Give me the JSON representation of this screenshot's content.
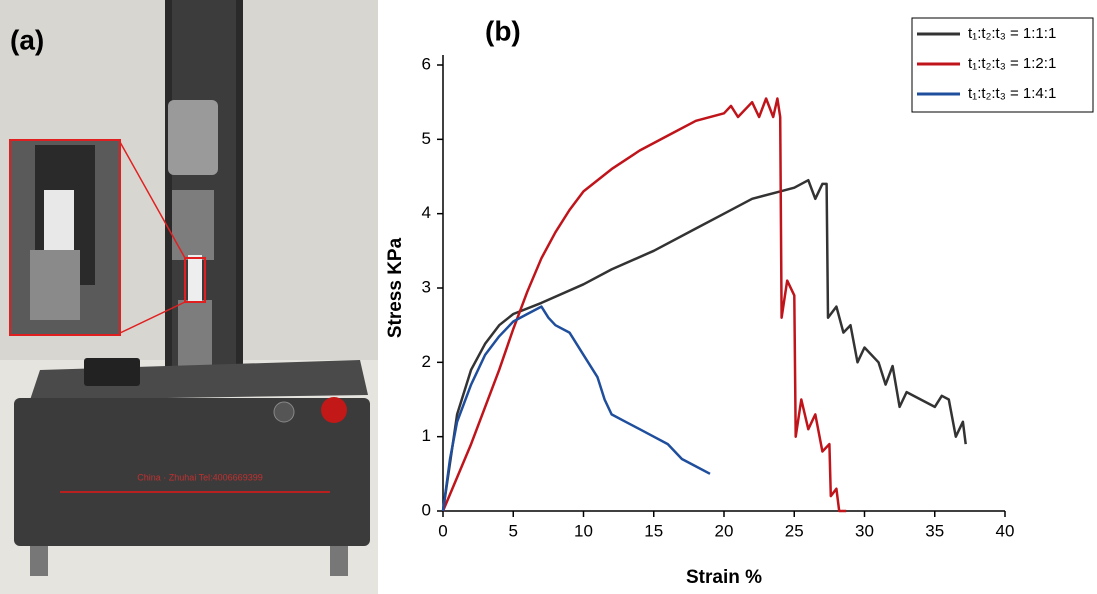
{
  "panel_labels": [
    "(a)",
    "(b)"
  ],
  "photo": {
    "machine_text": "China · Zhuhai Tel:4006669399"
  },
  "chart_data": {
    "type": "line",
    "xlabel": "Strain %",
    "ylabel": "Stress KPa",
    "xlim": [
      0,
      40
    ],
    "xticks": [
      0,
      5,
      10,
      15,
      20,
      25,
      30,
      35,
      40
    ],
    "ylim": [
      0,
      6
    ],
    "yticks": [
      0,
      1,
      2,
      3,
      4,
      5,
      6
    ],
    "legend": "upper right",
    "series": [
      {
        "name": "t₁:t₂:t₃ = 1:1:1",
        "color": "#333333",
        "x": [
          0,
          1,
          2,
          3,
          4,
          5,
          7,
          10,
          12,
          15,
          18,
          20,
          22,
          24,
          25,
          26,
          26.5,
          27,
          27.3,
          27.4,
          28,
          28.5,
          29,
          29.5,
          30,
          31,
          31.5,
          32,
          32.5,
          33,
          34,
          35,
          35.5,
          36,
          36.5,
          37,
          37.2
        ],
        "values": [
          0,
          1.3,
          1.9,
          2.25,
          2.5,
          2.65,
          2.8,
          3.05,
          3.25,
          3.5,
          3.8,
          4.0,
          4.2,
          4.3,
          4.35,
          4.45,
          4.2,
          4.4,
          4.4,
          2.6,
          2.75,
          2.4,
          2.5,
          2.0,
          2.2,
          2.0,
          1.7,
          1.95,
          1.4,
          1.6,
          1.5,
          1.4,
          1.55,
          1.5,
          1.0,
          1.2,
          0.9
        ]
      },
      {
        "name": "t₁:t₂:t₃ = 1:2:1",
        "color": "#c0141b",
        "x": [
          0,
          2,
          4,
          5,
          6,
          7,
          8,
          9,
          10,
          12,
          14,
          16,
          18,
          20,
          20.5,
          21,
          22,
          22.5,
          23,
          23.5,
          23.8,
          24,
          24.1,
          24.5,
          25,
          25.1,
          25.5,
          26,
          26.5,
          27,
          27.5,
          27.6,
          28,
          28.2,
          28.7
        ],
        "values": [
          0,
          0.9,
          1.9,
          2.45,
          2.95,
          3.4,
          3.75,
          4.05,
          4.3,
          4.6,
          4.85,
          5.05,
          5.25,
          5.35,
          5.45,
          5.3,
          5.5,
          5.3,
          5.55,
          5.3,
          5.55,
          5.3,
          2.6,
          3.1,
          2.9,
          1.0,
          1.5,
          1.1,
          1.3,
          0.8,
          0.9,
          0.2,
          0.3,
          0,
          0
        ]
      },
      {
        "name": "t₁:t₂:t₃ = 1:4:1",
        "color": "#1f4e9c",
        "x": [
          0,
          0.5,
          1,
          2,
          3,
          4,
          5,
          6,
          7,
          7.5,
          8,
          9,
          10,
          11,
          11.5,
          12,
          13,
          14,
          15,
          16,
          17,
          18,
          19
        ],
        "values": [
          0,
          0.7,
          1.2,
          1.7,
          2.1,
          2.35,
          2.55,
          2.65,
          2.75,
          2.6,
          2.5,
          2.4,
          2.1,
          1.8,
          1.5,
          1.3,
          1.2,
          1.1,
          1.0,
          0.9,
          0.7,
          0.6,
          0.5
        ]
      }
    ]
  }
}
